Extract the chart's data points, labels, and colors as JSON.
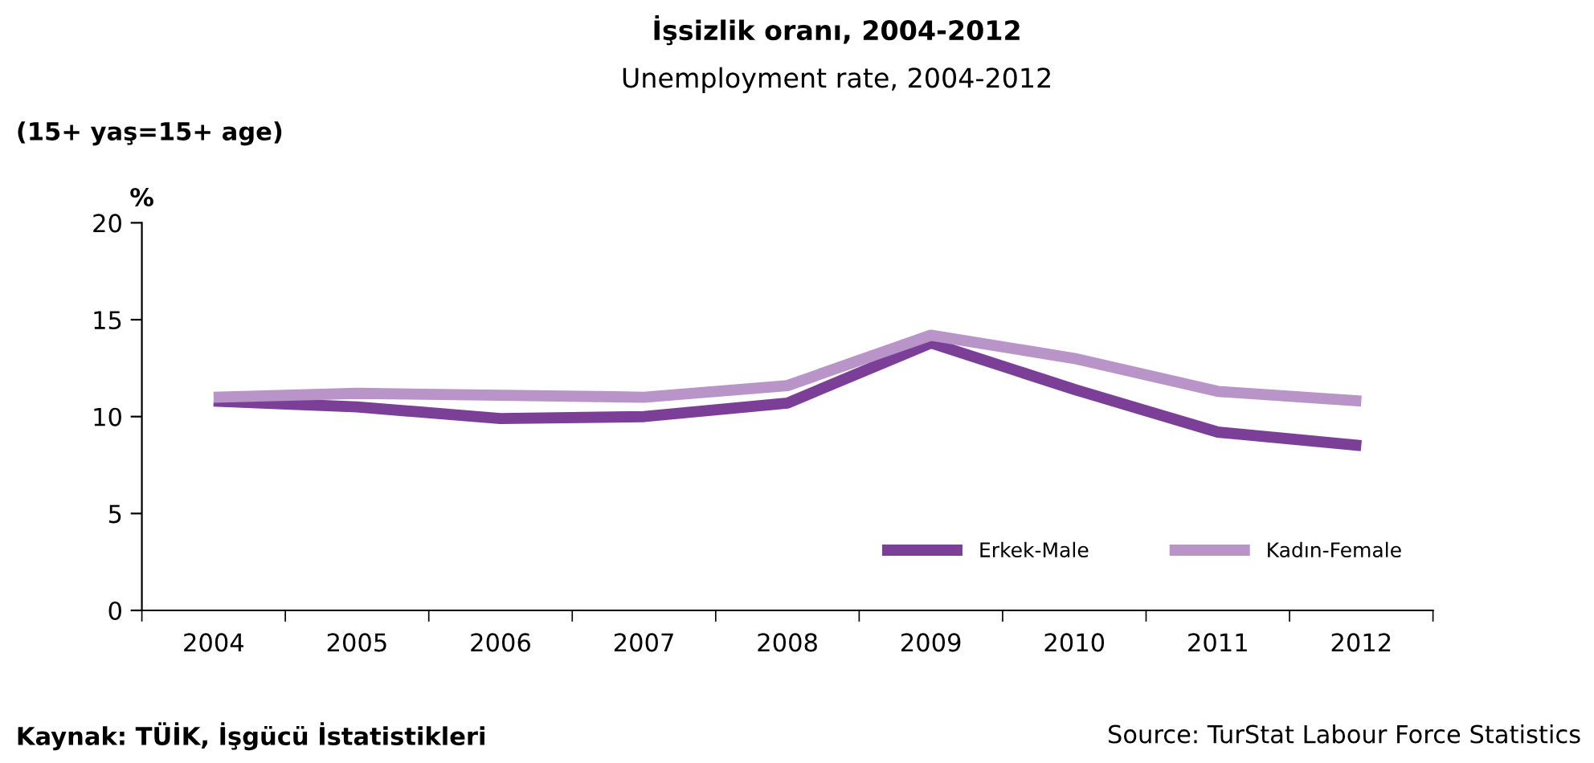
{
  "chart_data": {
    "type": "line",
    "title": "İşsizlik oranı, 2004-2012",
    "subtitle": "Unemployment rate, 2004-2012",
    "ylabel": "%",
    "categories": [
      "2004",
      "2005",
      "2006",
      "2007",
      "2008",
      "2009",
      "2010",
      "2011",
      "2012"
    ],
    "series": [
      {
        "name": "Erkek-Male",
        "color": "#7b3f98",
        "values": [
          10.8,
          10.5,
          9.9,
          10.0,
          10.7,
          13.8,
          11.4,
          9.2,
          8.5
        ]
      },
      {
        "name": "Kadın-Female",
        "color": "#b994c8",
        "values": [
          11.0,
          11.2,
          11.1,
          11.0,
          11.6,
          14.2,
          13.0,
          11.3,
          10.8
        ]
      }
    ],
    "ylim": [
      0,
      20
    ],
    "yticks": [
      0,
      5,
      10,
      15,
      20
    ],
    "grid": false,
    "legend": "bottom right",
    "marker": "none",
    "line_style": "solid",
    "annotations": [
      "(15+ yaş=15+ age)",
      "Kaynak: TÜİK, İşgücü İstatistikleri",
      "Source: TurStat Labour Force Statistics"
    ]
  }
}
